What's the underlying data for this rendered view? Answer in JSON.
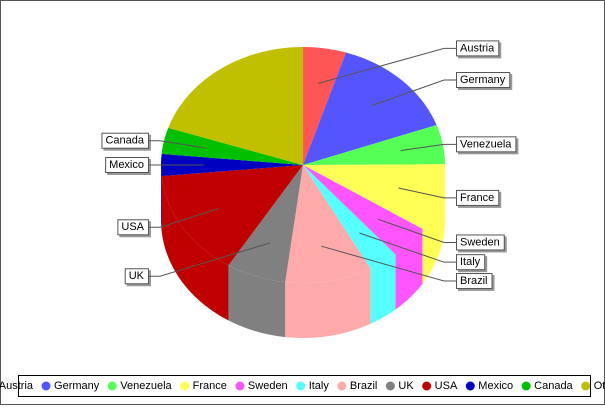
{
  "chart_data": {
    "type": "pie3d",
    "categories": [
      "Austria",
      "Germany",
      "Venezuela",
      "France",
      "Sweden",
      "Italy",
      "Brazil",
      "UK",
      "USA",
      "Mexico",
      "Canada",
      "Other"
    ],
    "values": [
      4.9,
      14.6,
      5.4,
      9.2,
      4.6,
      3.4,
      9.9,
      6.8,
      14.7,
      3.0,
      3.6,
      19.9
    ],
    "colors": [
      "#ff5555",
      "#5555ff",
      "#55ff55",
      "#ffff55",
      "#ff55ff",
      "#55ffff",
      "#ffaaaa",
      "#808080",
      "#c00000",
      "#0000c0",
      "#00c000",
      "#c0c000"
    ]
  }
}
